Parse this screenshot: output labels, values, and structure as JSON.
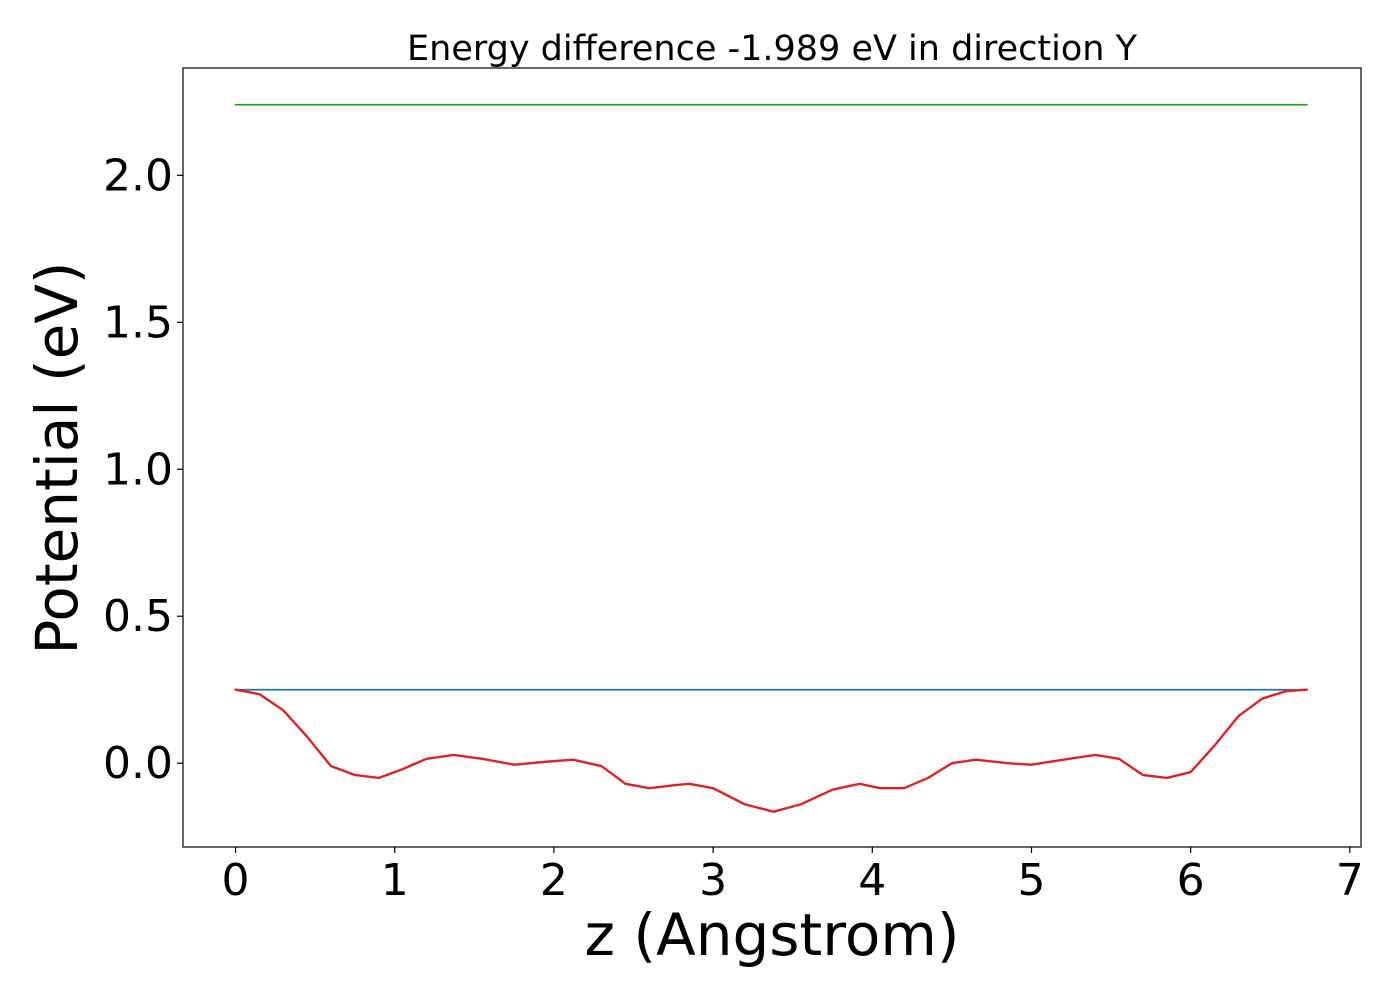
{
  "chart_data": {
    "type": "line",
    "title": "Energy difference -1.989 eV in direction Y",
    "xlabel": "z (Angstrom)",
    "ylabel": "Potential (eV)",
    "xlim": [
      -0.33,
      7.07
    ],
    "ylim": [
      -0.285,
      2.365
    ],
    "xticks": [
      0,
      1,
      2,
      3,
      4,
      5,
      6,
      7
    ],
    "xtick_labels": [
      "0",
      "1",
      "2",
      "3",
      "4",
      "5",
      "6",
      "7"
    ],
    "yticks": [
      0.0,
      0.5,
      1.0,
      1.5,
      2.0
    ],
    "ytick_labels": [
      "0.0",
      "0.5",
      "1.0",
      "1.5",
      "2.0"
    ],
    "grid": false,
    "series": [
      {
        "color": "#2ca02c",
        "x": [
          0,
          6.73
        ],
        "y": [
          2.24,
          2.24
        ]
      },
      {
        "color": "#1f77b4",
        "x": [
          0,
          6.73
        ],
        "y": [
          0.25,
          0.25
        ]
      },
      {
        "color": "#d62728",
        "x": [
          0,
          0.15,
          0.3,
          0.45,
          0.6,
          0.75,
          0.9,
          1.05,
          1.2,
          1.37,
          1.55,
          1.75,
          1.95,
          2.12,
          2.3,
          2.45,
          2.6,
          2.75,
          2.85,
          3.0,
          3.2,
          3.38,
          3.55,
          3.75,
          3.92,
          4.05,
          4.2,
          4.35,
          4.5,
          4.65,
          4.85,
          5.0,
          5.2,
          5.4,
          5.55,
          5.7,
          5.85,
          6.0,
          6.15,
          6.3,
          6.45,
          6.6,
          6.73
        ],
        "y": [
          0.25,
          0.235,
          0.18,
          0.09,
          -0.01,
          -0.04,
          -0.05,
          -0.02,
          0.015,
          0.028,
          0.015,
          -0.005,
          0.005,
          0.012,
          -0.01,
          -0.07,
          -0.085,
          -0.075,
          -0.07,
          -0.085,
          -0.14,
          -0.165,
          -0.14,
          -0.09,
          -0.07,
          -0.085,
          -0.085,
          -0.05,
          0.0,
          0.012,
          0.0,
          -0.005,
          0.012,
          0.028,
          0.015,
          -0.04,
          -0.05,
          -0.03,
          0.06,
          0.16,
          0.22,
          0.245,
          0.25
        ]
      }
    ]
  }
}
